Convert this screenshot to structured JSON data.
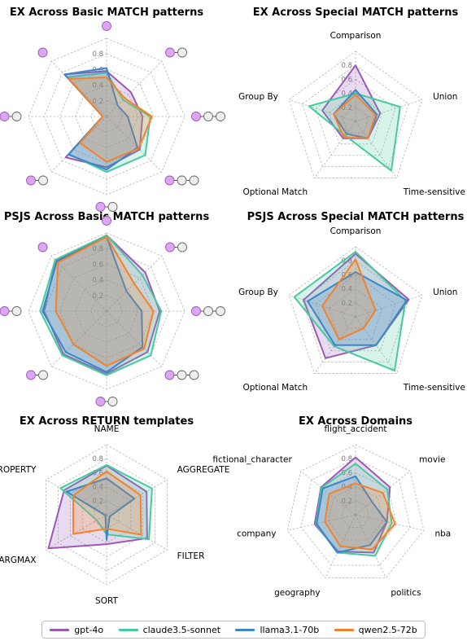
{
  "chart_data": [
    {
      "type": "radar",
      "title": "EX Across Basic MATCH patterns",
      "axis_labels": "icons",
      "categories": [
        "pattern-1",
        "pattern-2",
        "pattern-3",
        "pattern-4",
        "pattern-5",
        "pattern-6",
        "pattern-7",
        "pattern-8"
      ],
      "rlim": [
        0,
        1
      ],
      "rticks": [
        0.2,
        0.4,
        0.6,
        0.8
      ],
      "series": [
        {
          "name": "gpt-4o",
          "values": [
            0.58,
            0.44,
            0.46,
            0.6,
            0.65,
            0.74,
            0.05,
            0.76
          ]
        },
        {
          "name": "claude3.5-sonnet",
          "values": [
            0.56,
            0.3,
            0.56,
            0.7,
            0.71,
            0.68,
            0.05,
            0.71
          ]
        },
        {
          "name": "llama3.1-70b",
          "values": [
            0.62,
            0.2,
            0.27,
            0.56,
            0.68,
            0.69,
            0.05,
            0.76
          ]
        },
        {
          "name": "qwen2.5-72b",
          "values": [
            0.5,
            0.33,
            0.58,
            0.58,
            0.58,
            0.48,
            0.05,
            0.68
          ]
        }
      ]
    },
    {
      "type": "radar",
      "title": "EX Across Special MATCH patterns",
      "categories": [
        "Comparison",
        "Union",
        "Time-sensitive",
        "Optional Match",
        "Group By"
      ],
      "rlim": [
        0,
        1
      ],
      "rticks": [
        0.2,
        0.4,
        0.6,
        0.8
      ],
      "series": [
        {
          "name": "gpt-4o",
          "values": [
            0.8,
            0.37,
            0.3,
            0.3,
            0.5
          ]
        },
        {
          "name": "claude3.5-sonnet",
          "values": [
            0.4,
            0.67,
            0.87,
            0.25,
            0.7
          ]
        },
        {
          "name": "llama3.1-70b",
          "values": [
            0.45,
            0.32,
            0.3,
            0.22,
            0.33
          ]
        },
        {
          "name": "qwen2.5-72b",
          "values": [
            0.38,
            0.3,
            0.3,
            0.28,
            0.33
          ]
        }
      ]
    },
    {
      "type": "radar",
      "title": "PSJS Across Basic MATCH patterns",
      "axis_labels": "icons",
      "categories": [
        "pattern-1",
        "pattern-2",
        "pattern-3",
        "pattern-4",
        "pattern-5",
        "pattern-6",
        "pattern-7",
        "pattern-8"
      ],
      "rlim": [
        0,
        1
      ],
      "rticks": [
        0.2,
        0.4,
        0.6,
        0.8
      ],
      "series": [
        {
          "name": "gpt-4o",
          "values": [
            0.97,
            0.7,
            0.68,
            0.74,
            0.8,
            0.78,
            0.8,
            0.92
          ]
        },
        {
          "name": "claude3.5-sonnet",
          "values": [
            0.97,
            0.65,
            0.7,
            0.8,
            0.82,
            0.8,
            0.85,
            0.93
          ]
        },
        {
          "name": "llama3.1-70b",
          "values": [
            0.95,
            0.36,
            0.45,
            0.65,
            0.78,
            0.74,
            0.82,
            0.9
          ]
        },
        {
          "name": "qwen2.5-72b",
          "values": [
            0.95,
            0.5,
            0.6,
            0.68,
            0.7,
            0.6,
            0.65,
            0.88
          ]
        }
      ]
    },
    {
      "type": "radar",
      "title": "PSJS Across Special MATCH patterns",
      "categories": [
        "Comparison",
        "Union",
        "Time-sensitive",
        "Optional Match",
        "Group By"
      ],
      "rlim": [
        0,
        1
      ],
      "rticks": [
        0.2,
        0.4,
        0.6,
        0.8
      ],
      "series": [
        {
          "name": "gpt-4o",
          "values": [
            0.9,
            0.8,
            0.5,
            0.73,
            0.78
          ]
        },
        {
          "name": "claude3.5-sonnet",
          "values": [
            0.93,
            0.75,
            0.95,
            0.52,
            0.92
          ]
        },
        {
          "name": "llama3.1-70b",
          "values": [
            0.64,
            0.77,
            0.5,
            0.5,
            0.72
          ]
        },
        {
          "name": "qwen2.5-72b",
          "values": [
            0.82,
            0.3,
            0.2,
            0.4,
            0.5
          ]
        }
      ]
    },
    {
      "type": "radar",
      "title": "EX Across RETURN templates",
      "categories": [
        "NAME",
        "AGGREGATE",
        "FILTER",
        "SORT",
        "ARGMAX",
        "PROPERTY"
      ],
      "rlim": [
        0,
        1
      ],
      "rticks": [
        0.2,
        0.4,
        0.6,
        0.8
      ],
      "series": [
        {
          "name": "gpt-4o",
          "values": [
            0.7,
            0.66,
            0.67,
            0.42,
            0.96,
            0.7
          ]
        },
        {
          "name": "claude3.5-sonnet",
          "values": [
            0.71,
            0.75,
            0.7,
            0.28,
            0.16,
            0.76
          ]
        },
        {
          "name": "llama3.1-70b",
          "values": [
            0.52,
            0.46,
            0.05,
            0.36,
            0.02,
            0.66
          ]
        },
        {
          "name": "qwen2.5-72b",
          "values": [
            0.62,
            0.56,
            0.57,
            0.2,
            0.55,
            0.55
          ]
        }
      ]
    },
    {
      "type": "radar",
      "title": "EX Across Domains",
      "categories": [
        "flight_accident",
        "movie",
        "nba",
        "politics",
        "geography",
        "company",
        "fictional_character"
      ],
      "rlim": [
        0,
        1
      ],
      "rticks": [
        0.2,
        0.4,
        0.6,
        0.8
      ],
      "series": [
        {
          "name": "gpt-4o",
          "values": [
            0.82,
            0.63,
            0.46,
            0.6,
            0.58,
            0.6,
            0.63
          ]
        },
        {
          "name": "claude3.5-sonnet",
          "values": [
            0.73,
            0.58,
            0.53,
            0.65,
            0.6,
            0.58,
            0.62
          ]
        },
        {
          "name": "llama3.1-70b",
          "values": [
            0.55,
            0.3,
            0.46,
            0.48,
            0.6,
            0.57,
            0.6
          ]
        },
        {
          "name": "qwen2.5-72b",
          "values": [
            0.45,
            0.5,
            0.58,
            0.55,
            0.5,
            0.45,
            0.48
          ]
        }
      ]
    }
  ],
  "legend": {
    "placement": "bottom",
    "items": [
      {
        "label": "gpt-4o",
        "color": "#9b59b6"
      },
      {
        "label": "claude3.5-sonnet",
        "color": "#48c9a0"
      },
      {
        "label": "llama3.1-70b",
        "color": "#3a86c8"
      },
      {
        "label": "qwen2.5-72b",
        "color": "#f5822a"
      }
    ]
  }
}
